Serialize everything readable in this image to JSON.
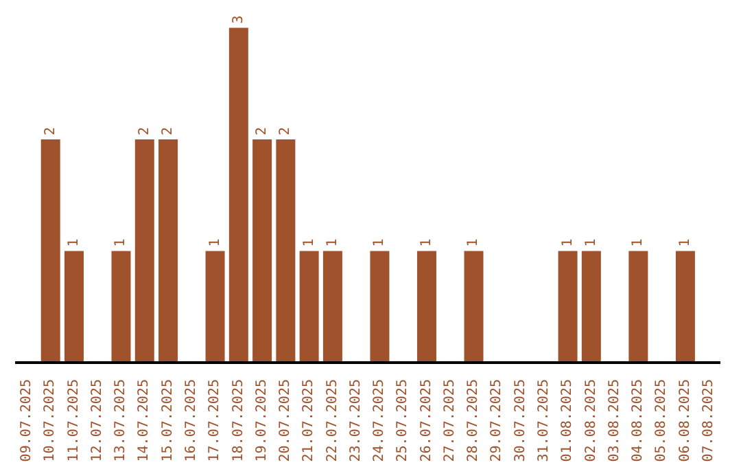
{
  "chart_data": {
    "type": "bar",
    "categories": [
      "09.07.2025",
      "10.07.2025",
      "11.07.2025",
      "12.07.2025",
      "13.07.2025",
      "14.07.2025",
      "15.07.2025",
      "16.07.2025",
      "17.07.2025",
      "18.07.2025",
      "19.07.2025",
      "20.07.2025",
      "21.07.2025",
      "22.07.2025",
      "23.07.2025",
      "24.07.2025",
      "25.07.2025",
      "26.07.2025",
      "27.07.2025",
      "28.07.2025",
      "29.07.2025",
      "30.07.2025",
      "31.07.2025",
      "01.08.2025",
      "02.08.2025",
      "03.08.2025",
      "04.08.2025",
      "05.08.2025",
      "06.08.2025",
      "07.08.2025"
    ],
    "values": [
      0,
      2,
      1,
      0,
      1,
      2,
      2,
      0,
      1,
      3,
      2,
      2,
      1,
      1,
      0,
      1,
      0,
      1,
      0,
      1,
      0,
      0,
      0,
      1,
      1,
      0,
      1,
      0,
      1,
      0
    ],
    "value_labels": [
      null,
      "2",
      "1",
      null,
      "1",
      "2",
      "2",
      null,
      "1",
      "3",
      "2",
      "2",
      "1",
      "1",
      null,
      "1",
      null,
      "1",
      null,
      "1",
      null,
      null,
      null,
      "1",
      "1",
      null,
      "1",
      null,
      "1",
      null
    ],
    "color": "#a0522d",
    "tick_labels": "x"
  }
}
